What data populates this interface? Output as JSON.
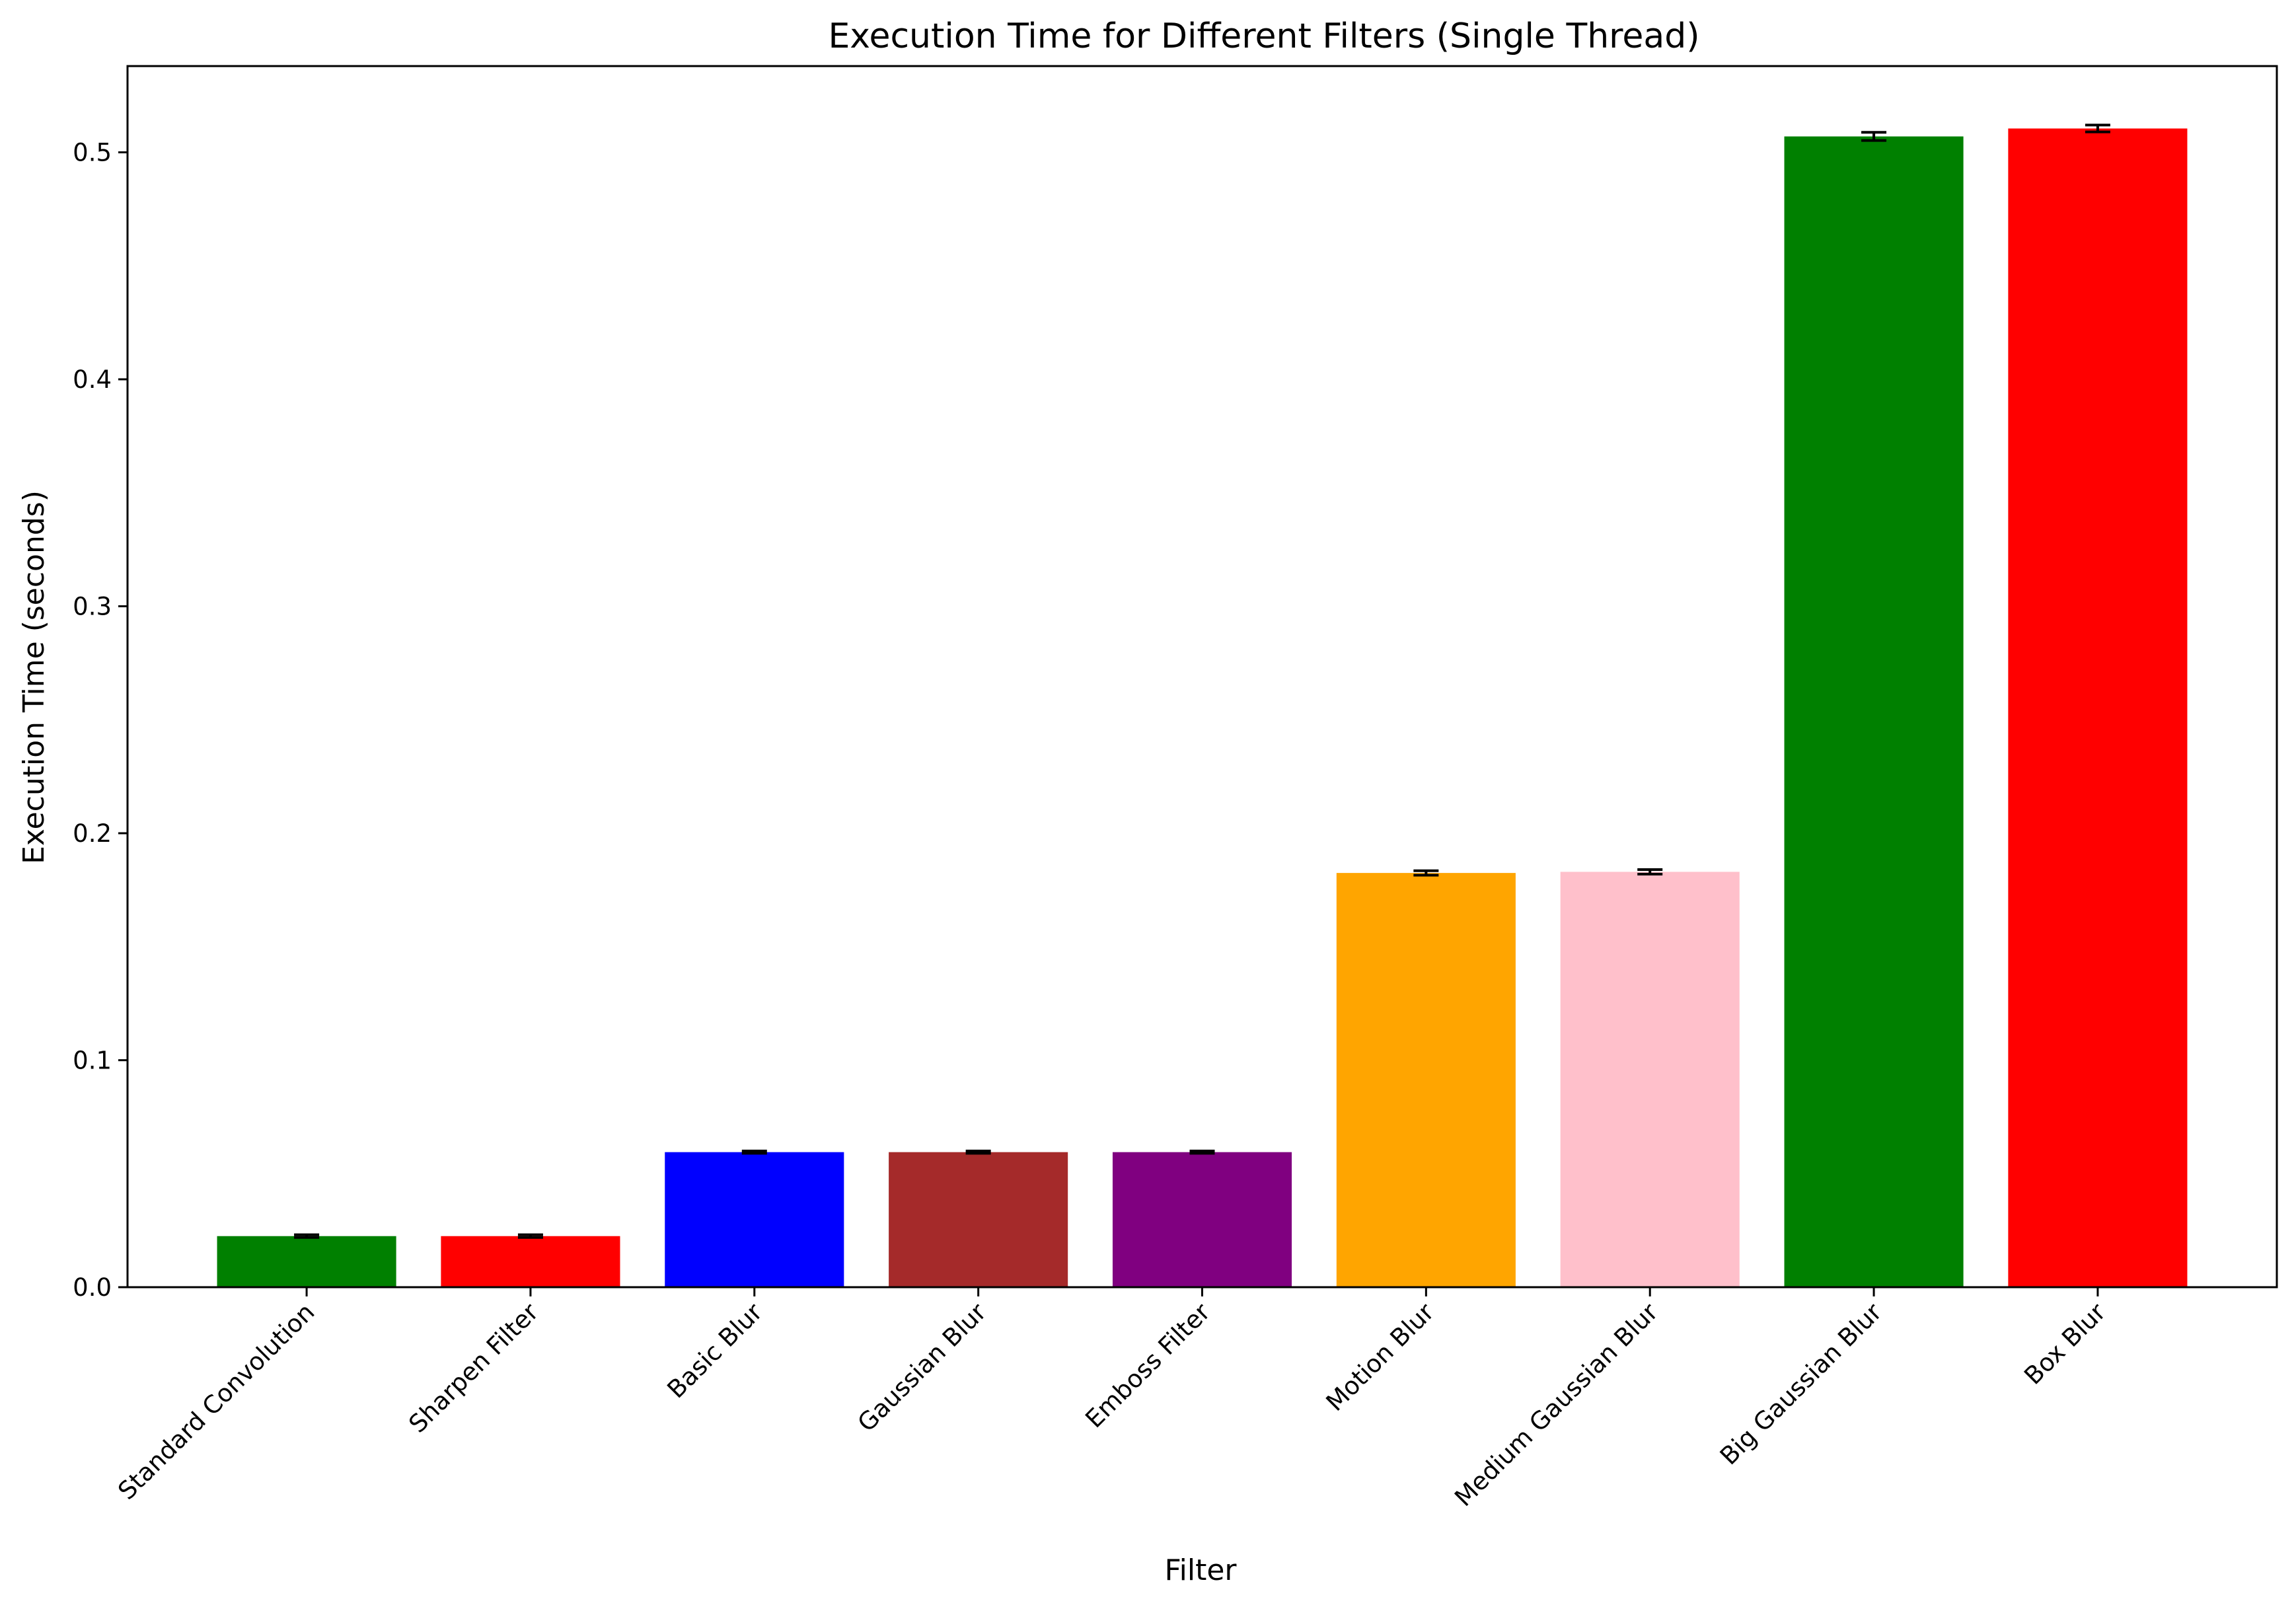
{
  "chart_data": {
    "type": "bar",
    "title": "Execution Time for Different Filters (Single Thread)",
    "xlabel": "Filter",
    "ylabel": "Execution Time (seconds)",
    "categories": [
      "Standard Convolution",
      "Sharpen Filter",
      "Basic Blur",
      "Gaussian Blur",
      "Emboss Filter",
      "Motion Blur",
      "Medium Gaussian Blur",
      "Big Gaussian Blur",
      "Box Blur"
    ],
    "values": [
      0.0225,
      0.0225,
      0.0595,
      0.0595,
      0.0595,
      0.1825,
      0.183,
      0.507,
      0.5105
    ],
    "errors": [
      0.0006,
      0.0006,
      0.0005,
      0.0005,
      0.0005,
      0.001,
      0.001,
      0.0018,
      0.0015
    ],
    "colors": [
      "#008000",
      "#ff0000",
      "#0000ff",
      "#a52a2a",
      "#800080",
      "#ffa500",
      "#ffc0cb",
      "#008000",
      "#ff0000"
    ],
    "ylim": [
      0,
      0.538
    ],
    "yticks": [
      0.0,
      0.1,
      0.2,
      0.3,
      0.4,
      0.5
    ],
    "ytick_labels": [
      "0.0",
      "0.1",
      "0.2",
      "0.3",
      "0.4",
      "0.5"
    ],
    "grid": false,
    "legend": "none"
  }
}
